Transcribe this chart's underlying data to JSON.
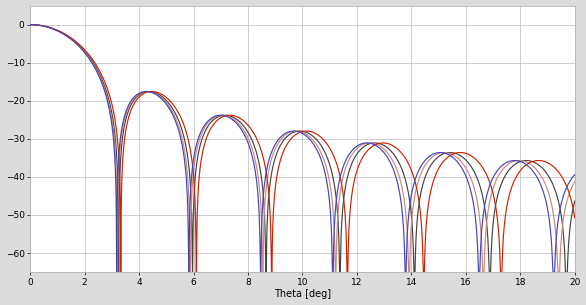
{
  "title": "",
  "xlabel": "Theta [deg]",
  "ylabel": "",
  "xlim": [
    0,
    20
  ],
  "ylim": [
    -65,
    5
  ],
  "yticks": [
    0,
    -10,
    -20,
    -30,
    -40,
    -50,
    -60
  ],
  "xticks": [
    0,
    2,
    4,
    6,
    8,
    10,
    12,
    14,
    16,
    18,
    20
  ],
  "background_color": "#dcdcdc",
  "plot_bg_color": "#ffffff",
  "grid_color": "#bbbbbb",
  "colors": [
    "#cc2200",
    "#4444bb",
    "#444444",
    "#cc8877"
  ],
  "linewidth": 0.85
}
